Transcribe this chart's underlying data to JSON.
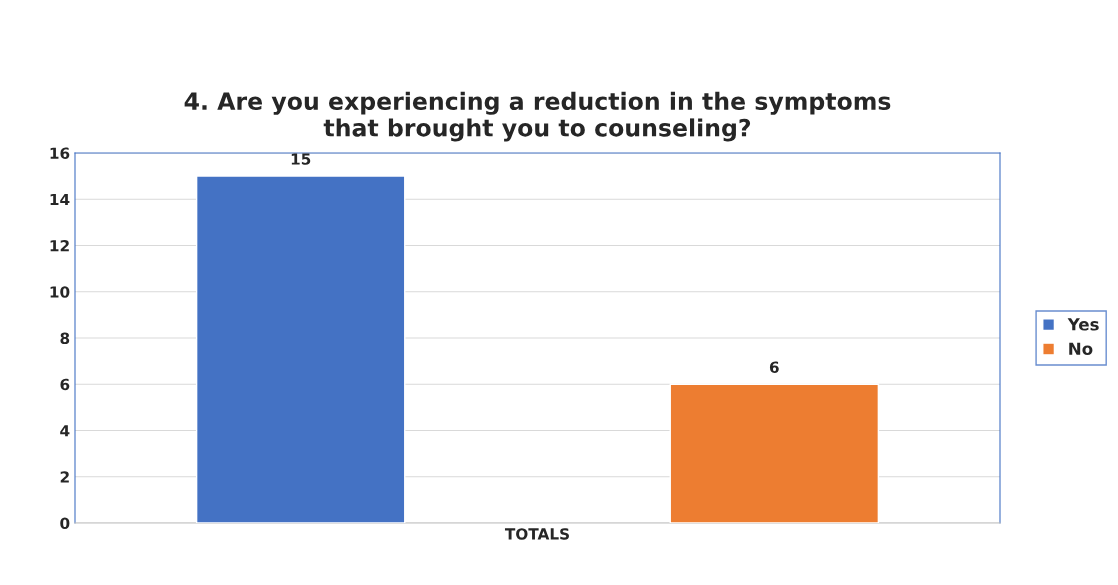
{
  "chart_data": {
    "type": "bar",
    "title": "4. Are you experiencing a reduction in the symptoms\nthat brought you to counseling?",
    "categories": [
      "TOTALS"
    ],
    "series": [
      {
        "name": "Yes",
        "color": "#4472c4",
        "values": [
          15
        ]
      },
      {
        "name": "No",
        "color": "#ed7d31",
        "values": [
          6
        ]
      }
    ],
    "ylim": [
      0,
      16
    ],
    "yticks": [
      0,
      2,
      4,
      6,
      8,
      10,
      12,
      14,
      16
    ],
    "grid": "y",
    "legend": "right",
    "data_labels": true
  }
}
